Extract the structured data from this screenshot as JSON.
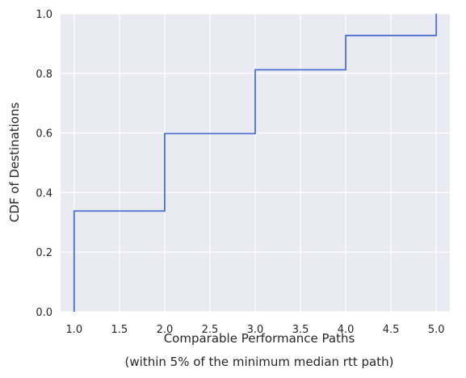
{
  "chart_data": {
    "type": "line",
    "style": "step-ecdf",
    "xlabel": "Comparable Performance Paths",
    "xlabel_sub": "(within 5% of the minimum median rtt path)",
    "ylabel": "CDF of Destinations",
    "xlim": [
      0.85,
      5.15
    ],
    "ylim": [
      0.0,
      1.0
    ],
    "xticks": [
      1.0,
      1.5,
      2.0,
      2.5,
      3.0,
      3.5,
      4.0,
      4.5,
      5.0
    ],
    "xtick_labels": [
      "1.0",
      "1.5",
      "2.0",
      "2.5",
      "3.0",
      "3.5",
      "4.0",
      "4.5",
      "5.0"
    ],
    "yticks": [
      0.0,
      0.2,
      0.4,
      0.6,
      0.8,
      1.0
    ],
    "ytick_labels": [
      "0.0",
      "0.2",
      "0.4",
      "0.6",
      "0.8",
      "1.0"
    ],
    "grid": true,
    "background": "#eaeaf2",
    "grid_color": "#ffffff",
    "series": [
      {
        "color": "#4c72d0",
        "x": [
          1,
          2,
          3,
          4,
          5
        ],
        "y": [
          0.338,
          0.598,
          0.812,
          0.927,
          1.0
        ]
      }
    ]
  }
}
